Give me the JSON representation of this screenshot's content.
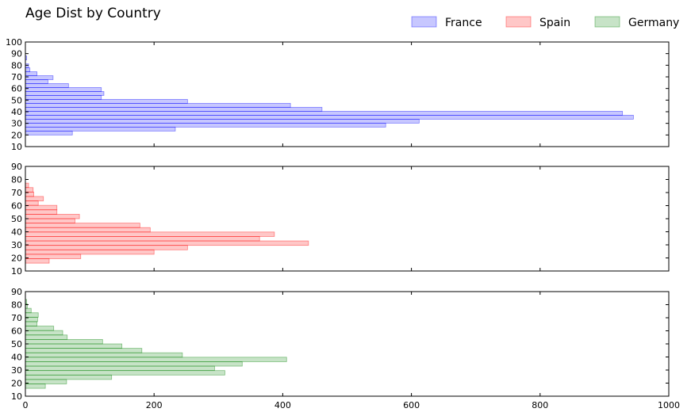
{
  "chart_data": {
    "type": "bar",
    "orientation": "horizontal",
    "title": "Age Dist by Country",
    "legend": {
      "placement": "top-right",
      "entries": [
        "France",
        "Spain",
        "Germany"
      ]
    },
    "x_axis": {
      "range": [
        0,
        1000
      ],
      "ticks": [
        "0",
        "200",
        "400",
        "600",
        "800",
        "1000"
      ]
    },
    "bin_width": 3.4,
    "panels": [
      {
        "name": "France",
        "color": "#0000ff",
        "y_range": [
          10,
          100
        ],
        "y_ticks": [
          "10",
          "20",
          "30",
          "40",
          "50",
          "60",
          "70",
          "80",
          "90",
          "100"
        ],
        "bins": [
          {
            "y": 16.6,
            "value": 0
          },
          {
            "y": 20.0,
            "value": 73
          },
          {
            "y": 23.4,
            "value": 233
          },
          {
            "y": 26.8,
            "value": 560
          },
          {
            "y": 30.2,
            "value": 612
          },
          {
            "y": 33.6,
            "value": 945
          },
          {
            "y": 37.0,
            "value": 928
          },
          {
            "y": 40.4,
            "value": 461
          },
          {
            "y": 43.8,
            "value": 412
          },
          {
            "y": 47.2,
            "value": 252
          },
          {
            "y": 50.6,
            "value": 118
          },
          {
            "y": 54.0,
            "value": 122
          },
          {
            "y": 57.4,
            "value": 118
          },
          {
            "y": 60.8,
            "value": 67
          },
          {
            "y": 64.2,
            "value": 35
          },
          {
            "y": 67.6,
            "value": 43
          },
          {
            "y": 71.0,
            "value": 18
          },
          {
            "y": 74.4,
            "value": 7
          },
          {
            "y": 77.8,
            "value": 5
          },
          {
            "y": 81.2,
            "value": 0
          },
          {
            "y": 84.6,
            "value": 2
          }
        ]
      },
      {
        "name": "Spain",
        "color": "#ff0000",
        "y_range": [
          10,
          90
        ],
        "y_ticks": [
          "10",
          "20",
          "30",
          "40",
          "50",
          "60",
          "70",
          "80",
          "90"
        ],
        "bins": [
          {
            "y": 16.0,
            "value": 37
          },
          {
            "y": 19.4,
            "value": 86
          },
          {
            "y": 22.8,
            "value": 200
          },
          {
            "y": 26.2,
            "value": 252
          },
          {
            "y": 29.6,
            "value": 440
          },
          {
            "y": 33.0,
            "value": 364
          },
          {
            "y": 36.4,
            "value": 387
          },
          {
            "y": 39.8,
            "value": 194
          },
          {
            "y": 43.2,
            "value": 178
          },
          {
            "y": 46.6,
            "value": 77
          },
          {
            "y": 50.0,
            "value": 84
          },
          {
            "y": 53.4,
            "value": 49
          },
          {
            "y": 56.8,
            "value": 49
          },
          {
            "y": 60.2,
            "value": 20
          },
          {
            "y": 63.6,
            "value": 28
          },
          {
            "y": 67.0,
            "value": 13
          },
          {
            "y": 70.4,
            "value": 12
          },
          {
            "y": 73.8,
            "value": 5
          }
        ]
      },
      {
        "name": "Germany",
        "color": "#008000",
        "y_range": [
          10,
          90
        ],
        "y_ticks": [
          "10",
          "20",
          "30",
          "40",
          "50",
          "60",
          "70",
          "80",
          "90"
        ],
        "bins": [
          {
            "y": 16.0,
            "value": 31
          },
          {
            "y": 19.4,
            "value": 64
          },
          {
            "y": 22.8,
            "value": 134
          },
          {
            "y": 26.2,
            "value": 310
          },
          {
            "y": 29.6,
            "value": 294
          },
          {
            "y": 33.0,
            "value": 337
          },
          {
            "y": 36.4,
            "value": 406
          },
          {
            "y": 39.8,
            "value": 244
          },
          {
            "y": 43.2,
            "value": 181
          },
          {
            "y": 46.6,
            "value": 150
          },
          {
            "y": 50.0,
            "value": 120
          },
          {
            "y": 53.4,
            "value": 65
          },
          {
            "y": 56.8,
            "value": 58
          },
          {
            "y": 60.2,
            "value": 44
          },
          {
            "y": 63.6,
            "value": 18
          },
          {
            "y": 67.0,
            "value": 19
          },
          {
            "y": 70.4,
            "value": 20
          },
          {
            "y": 73.8,
            "value": 9
          },
          {
            "y": 77.2,
            "value": 3
          },
          {
            "y": 80.6,
            "value": 2
          }
        ]
      }
    ]
  }
}
